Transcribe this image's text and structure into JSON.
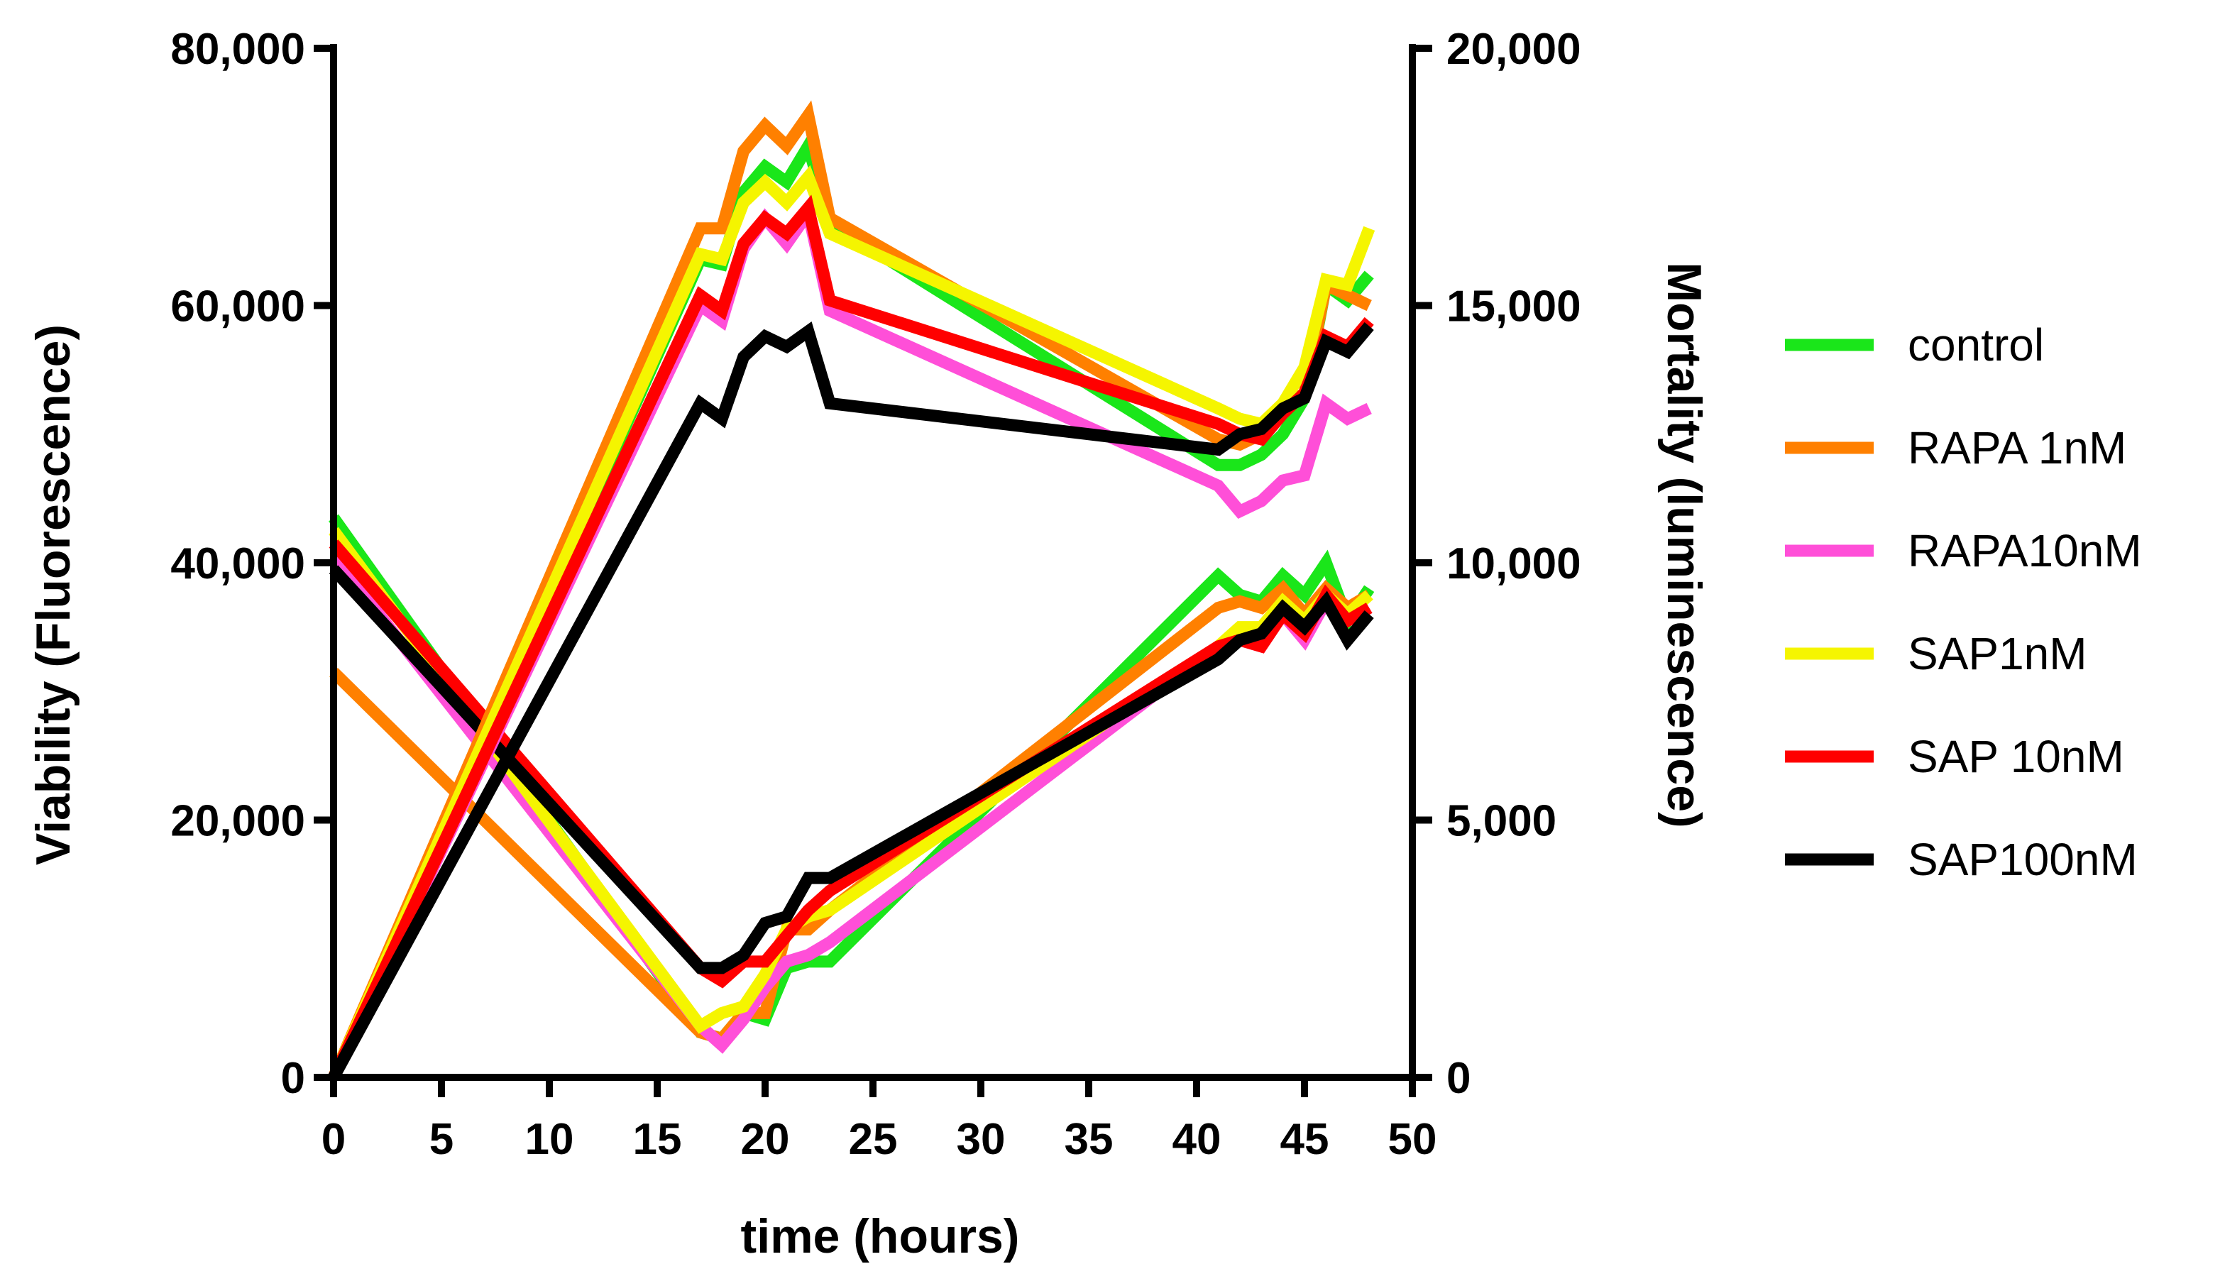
{
  "chart_data": {
    "type": "line",
    "title": "",
    "xlabel": "time (hours)",
    "ylabel_left": "Viability (Fluorescence)",
    "ylabel_right": "Mortality (luminescence)",
    "xlim": [
      0,
      50
    ],
    "ylim_left": [
      0,
      80000
    ],
    "ylim_right": [
      0,
      20000
    ],
    "x_ticks": [
      "0",
      "5",
      "10",
      "15",
      "20",
      "25",
      "30",
      "35",
      "40",
      "45",
      "50"
    ],
    "y_left_ticks": [
      "0",
      "20,000",
      "40,000",
      "60,000",
      "80,000"
    ],
    "y_right_ticks": [
      "0",
      "5,000",
      "10,000",
      "15,000",
      "20,000"
    ],
    "legend_position": "right",
    "grid": false,
    "x": [
      0,
      17,
      18,
      19,
      20,
      21,
      22,
      23,
      41,
      42,
      43,
      44,
      45,
      46,
      47,
      48
    ],
    "viability_series": [
      {
        "name": "control",
        "color": "#1AE61A",
        "values": [
          43500,
          3500,
          3000,
          5000,
          4500,
          8500,
          9000,
          9000,
          39000,
          37500,
          37000,
          39000,
          37500,
          40000,
          35500,
          38000
        ]
      },
      {
        "name": "RAPA 1nM",
        "color": "#FF8000",
        "values": [
          31500,
          3500,
          3000,
          5000,
          5000,
          11500,
          11500,
          13000,
          36500,
          37000,
          36500,
          38000,
          36000,
          38000,
          36500,
          37500
        ]
      },
      {
        "name": "RAPA10nM",
        "color": "#FF4FD8",
        "values": [
          40500,
          4000,
          2500,
          4500,
          7000,
          9000,
          9500,
          10500,
          33500,
          34000,
          33500,
          36000,
          34000,
          37000,
          35500,
          36500
        ]
      },
      {
        "name": "SAP1nM",
        "color": "#F5F500",
        "values": [
          42500,
          4000,
          5000,
          5500,
          8000,
          11500,
          12500,
          13000,
          33500,
          35000,
          35000,
          37000,
          35500,
          37500,
          36000,
          37500
        ]
      },
      {
        "name": "SAP 10nM",
        "color": "#FF0000",
        "values": [
          41500,
          8500,
          7500,
          9000,
          9000,
          11000,
          13000,
          14500,
          33500,
          34000,
          33500,
          36000,
          34500,
          37500,
          35500,
          36500
        ]
      },
      {
        "name": "SAP100nM",
        "color": "#000000",
        "values": [
          39500,
          8500,
          8500,
          9500,
          12000,
          12500,
          15500,
          15500,
          32500,
          34000,
          34500,
          36500,
          35000,
          37000,
          34000,
          36000
        ]
      }
    ],
    "mortality_series": [
      {
        "name": "control",
        "color": "#1AE61A",
        "values": [
          0,
          15900,
          15800,
          17200,
          17700,
          17400,
          18100,
          16600,
          11900,
          11900,
          12100,
          12500,
          13200,
          15400,
          15100,
          15600
        ]
      },
      {
        "name": "RAPA 1nM",
        "color": "#FF8000",
        "values": [
          0,
          16500,
          16500,
          18000,
          18500,
          18100,
          18700,
          16700,
          12400,
          12300,
          12500,
          13000,
          13300,
          15400,
          15200,
          15000
        ]
      },
      {
        "name": "RAPA10nM",
        "color": "#FF4FD8",
        "values": [
          0,
          15000,
          14700,
          16100,
          16700,
          16200,
          16800,
          14900,
          11500,
          11000,
          11200,
          11600,
          11700,
          13100,
          12800,
          13000
        ]
      },
      {
        "name": "SAP1nM",
        "color": "#F5F500",
        "values": [
          0,
          16000,
          15900,
          17000,
          17400,
          17000,
          17500,
          16400,
          13000,
          12800,
          12700,
          13100,
          13800,
          15500,
          15400,
          16500
        ]
      },
      {
        "name": "SAP 10nM",
        "color": "#FF0000",
        "values": [
          0,
          15200,
          14900,
          16200,
          16700,
          16400,
          16900,
          15100,
          12700,
          12500,
          12400,
          12900,
          13300,
          14400,
          14200,
          14700
        ]
      },
      {
        "name": "SAP100nM",
        "color": "#000000",
        "values": [
          0,
          13100,
          12800,
          14000,
          14400,
          14200,
          14500,
          13100,
          12200,
          12500,
          12600,
          13000,
          13200,
          14300,
          14100,
          14600
        ]
      }
    ]
  }
}
